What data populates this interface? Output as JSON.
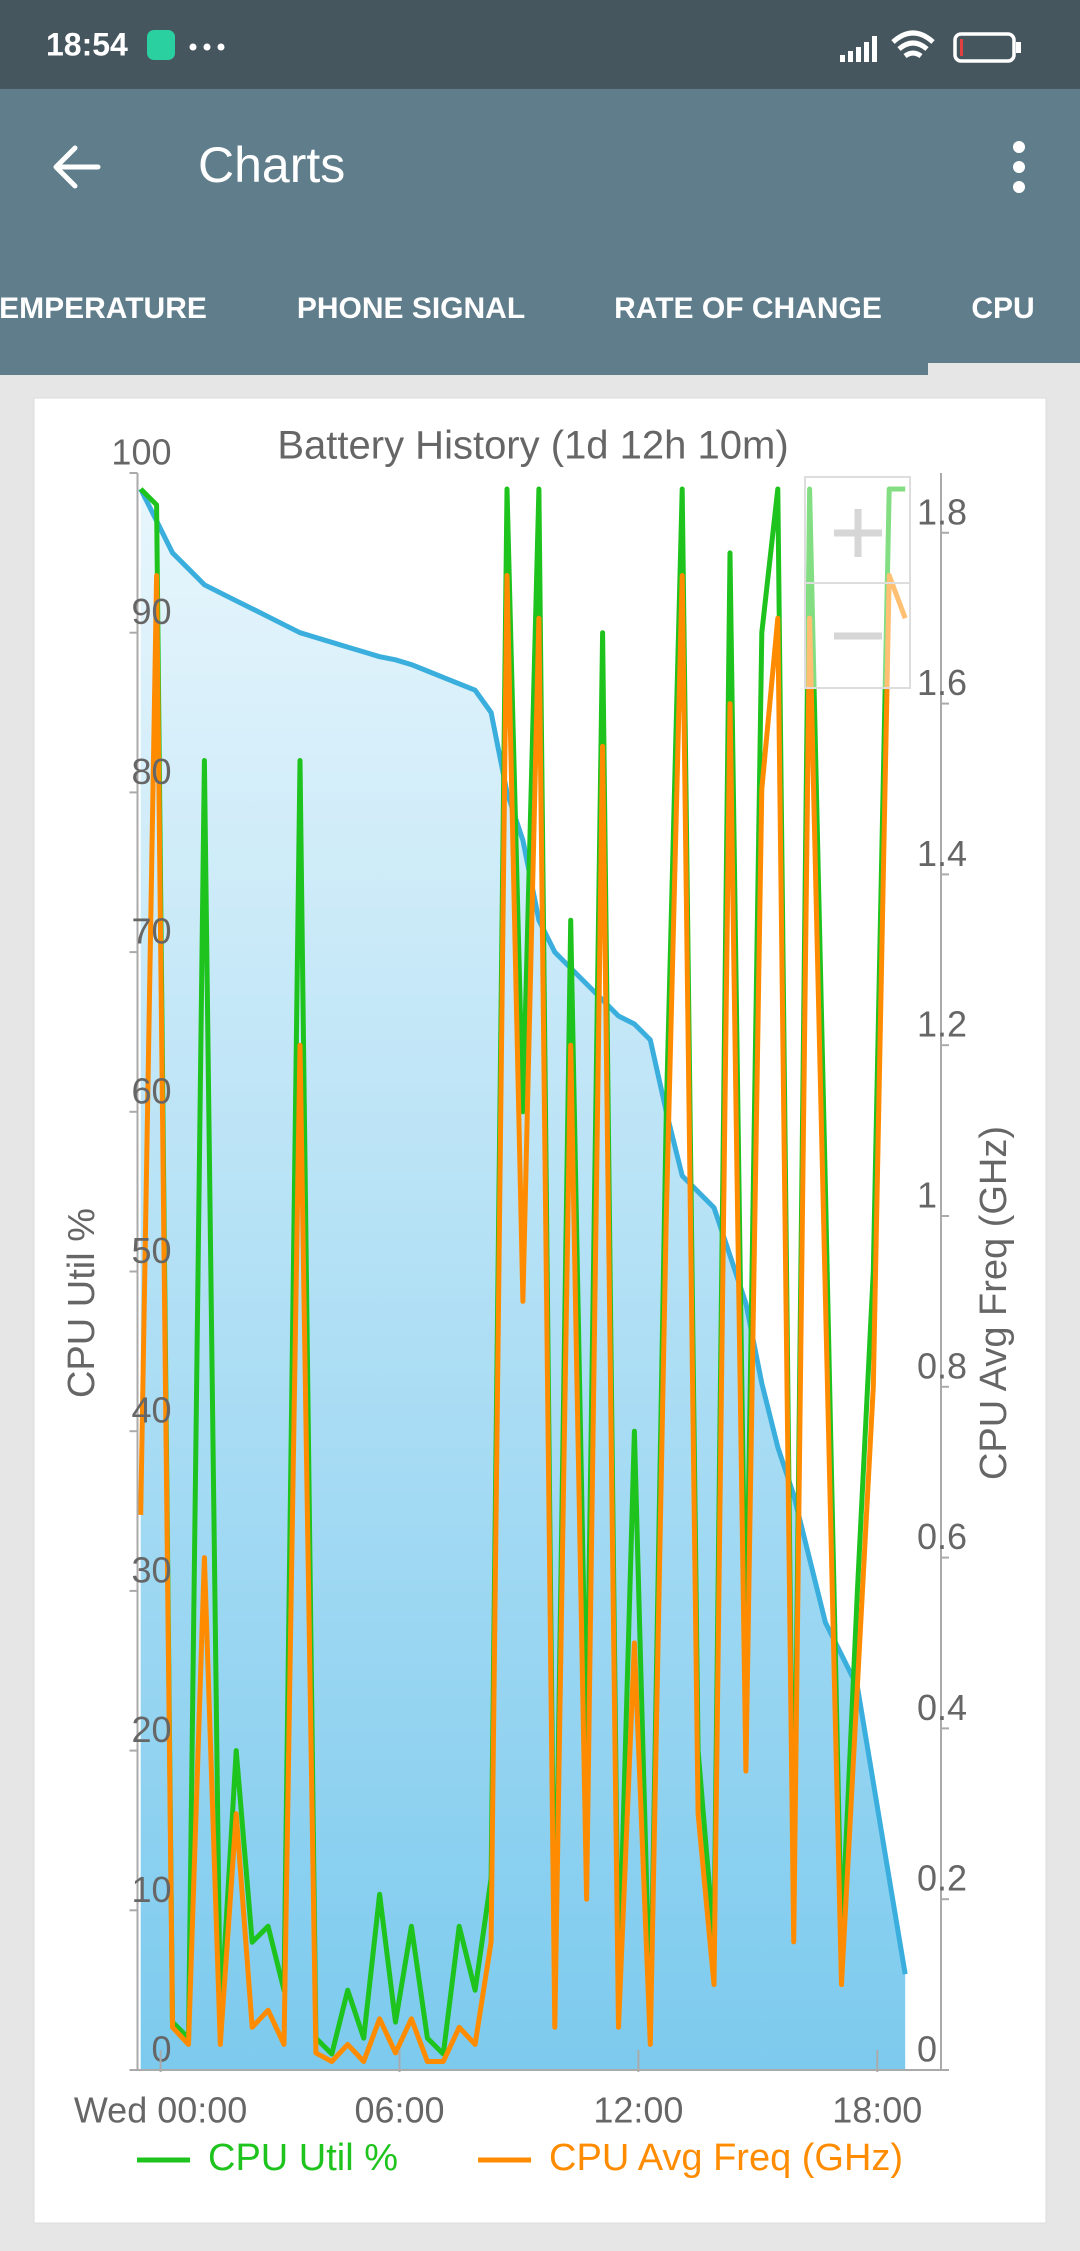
{
  "status_bar": {
    "time": "18:54"
  },
  "app_bar": {
    "title": "Charts"
  },
  "tabs": [
    "EMPERATURE",
    "PHONE SIGNAL",
    "RATE OF CHANGE",
    "CPU"
  ],
  "chart_data": {
    "type": "line",
    "title": "Battery History (1d 12h 10m)",
    "y_label": "CPU Util %",
    "y2_label": "CPU Avg Freq (GHz)",
    "x": [
      -0.5,
      -0.1,
      0.3,
      0.7,
      1.1,
      1.5,
      1.9,
      2.3,
      2.7,
      3.1,
      3.5,
      3.9,
      4.3,
      4.7,
      5.1,
      5.5,
      5.9,
      6.3,
      6.7,
      7.1,
      7.5,
      7.9,
      8.3,
      8.7,
      9.1,
      9.5,
      9.9,
      10.3,
      10.7,
      11.1,
      11.5,
      11.9,
      12.3,
      12.7,
      13.1,
      13.5,
      13.9,
      14.3,
      14.7,
      15.1,
      15.5,
      15.9,
      16.3,
      16.7,
      17.1,
      17.5,
      17.9,
      18.3,
      18.7
    ],
    "xlim": [
      -0.58,
      19.6
    ],
    "xticks": [
      {
        "value": 0,
        "label": "Wed 00:00"
      },
      {
        "value": 6,
        "label": "06:00"
      },
      {
        "value": 12,
        "label": "12:00"
      },
      {
        "value": 18,
        "label": "18:00"
      }
    ],
    "ylim": [
      0,
      100
    ],
    "yticks": [
      0,
      10,
      20,
      30,
      40,
      50,
      60,
      70,
      80,
      90,
      100
    ],
    "y2lim": [
      0,
      1.87
    ],
    "y2ticks": [
      0,
      0.2,
      0.4,
      0.6,
      0.8,
      1,
      1.2,
      1.4,
      1.6,
      1.8
    ],
    "grid": false,
    "legend": "bottom",
    "series": [
      {
        "color": "#3aaedc",
        "area": true,
        "values": [
          99,
          97,
          95,
          94,
          93,
          92.5,
          92,
          91.5,
          91,
          90.5,
          90,
          89.7,
          89.4,
          89.1,
          88.8,
          88.5,
          88.3,
          88,
          87.6,
          87.2,
          86.8,
          86.4,
          85,
          80,
          77,
          72,
          70,
          69,
          68,
          67,
          66,
          65.5,
          64.5,
          60,
          56,
          55,
          54,
          51,
          48,
          43,
          39,
          36,
          32,
          28,
          26,
          24,
          18,
          12,
          6
        ]
      },
      {
        "name": "CPU Util %",
        "color": "#1ec31e",
        "values": [
          99,
          98,
          3,
          2,
          82,
          3,
          20,
          8,
          9,
          5,
          82,
          2,
          1,
          5,
          2,
          11,
          3,
          9,
          2,
          1,
          9,
          5,
          12,
          99,
          60,
          99,
          5,
          72,
          20,
          90,
          5,
          40,
          3,
          60,
          99,
          20,
          8,
          95,
          25,
          90,
          99,
          10,
          99,
          55,
          8,
          30,
          50,
          99,
          99
        ]
      },
      {
        "name": "CPU Avg Freq (GHz)",
        "color": "#ff8c00",
        "axis": "y2",
        "values": [
          0.65,
          1.75,
          0.05,
          0.03,
          0.6,
          0.03,
          0.3,
          0.05,
          0.07,
          0.03,
          1.2,
          0.02,
          0.01,
          0.03,
          0.01,
          0.06,
          0.02,
          0.06,
          0.01,
          0.01,
          0.05,
          0.03,
          0.15,
          1.75,
          0.9,
          1.7,
          0.05,
          1.2,
          0.2,
          1.55,
          0.05,
          0.5,
          0.03,
          1.0,
          1.75,
          0.3,
          0.1,
          1.6,
          0.35,
          1.5,
          1.7,
          0.15,
          1.7,
          0.9,
          0.1,
          0.45,
          0.8,
          1.75,
          1.7
        ]
      }
    ]
  }
}
